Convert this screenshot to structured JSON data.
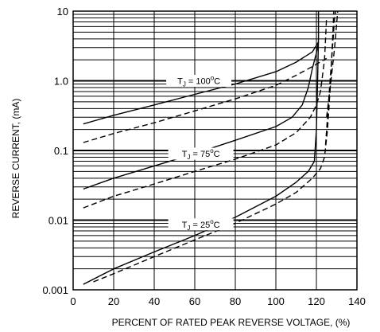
{
  "chart_data": {
    "type": "line",
    "title": "",
    "xlabel": "PERCENT OF RATED PEAK REVERSE VOLTAGE, (%)",
    "ylabel": "REVERSE CURRENT, (mA)",
    "x_scale": "linear",
    "y_scale": "log",
    "xlim": [
      0,
      140
    ],
    "ylim": [
      0.001,
      10
    ],
    "x_ticks": [
      0,
      20,
      40,
      60,
      80,
      100,
      120,
      140
    ],
    "x_tick_labels": [
      "0",
      "20",
      "40",
      "60",
      "80",
      "100",
      "120",
      "140"
    ],
    "y_ticks": [
      0.001,
      0.01,
      0.1,
      1,
      10
    ],
    "y_tick_labels": [
      "0.001",
      "0.01",
      "0.1",
      "1.0",
      "10"
    ],
    "grid": true,
    "series": [
      {
        "style": "solid",
        "points": [
          [
            5,
            0.24
          ],
          [
            20,
            0.32
          ],
          [
            40,
            0.45
          ],
          [
            60,
            0.64
          ],
          [
            80,
            0.9
          ],
          [
            100,
            1.35
          ],
          [
            110,
            1.85
          ],
          [
            118,
            2.6
          ],
          [
            121,
            3.6
          ]
        ]
      },
      {
        "style": "dashed",
        "points": [
          [
            5,
            0.13
          ],
          [
            20,
            0.175
          ],
          [
            40,
            0.25
          ],
          [
            60,
            0.37
          ],
          [
            80,
            0.55
          ],
          [
            100,
            0.86
          ],
          [
            110,
            1.2
          ],
          [
            118,
            1.6
          ],
          [
            121,
            1.8
          ],
          [
            125,
            2.1
          ]
        ]
      },
      {
        "style": "solid",
        "points": [
          [
            5,
            0.028
          ],
          [
            20,
            0.04
          ],
          [
            40,
            0.06
          ],
          [
            60,
            0.09
          ],
          [
            80,
            0.14
          ],
          [
            100,
            0.22
          ],
          [
            108,
            0.3
          ],
          [
            113,
            0.45
          ],
          [
            116,
            0.8
          ],
          [
            118,
            1.5
          ],
          [
            120,
            2.5
          ],
          [
            121,
            3.6
          ]
        ]
      },
      {
        "style": "dashed",
        "points": [
          [
            5,
            0.015
          ],
          [
            20,
            0.022
          ],
          [
            40,
            0.033
          ],
          [
            60,
            0.05
          ],
          [
            80,
            0.075
          ],
          [
            100,
            0.12
          ],
          [
            110,
            0.18
          ],
          [
            117,
            0.3
          ],
          [
            120,
            0.45
          ],
          [
            122,
            0.7
          ],
          [
            124,
            2.0
          ],
          [
            125,
            8.0
          ]
        ]
      },
      {
        "style": "solid",
        "points": [
          [
            5,
            0.0012
          ],
          [
            20,
            0.002
          ],
          [
            40,
            0.0035
          ],
          [
            60,
            0.006
          ],
          [
            80,
            0.011
          ],
          [
            100,
            0.022
          ],
          [
            110,
            0.035
          ],
          [
            116,
            0.05
          ],
          [
            119,
            0.07
          ],
          [
            120,
            0.2
          ],
          [
            120.6,
            1.0
          ],
          [
            121,
            4.0
          ],
          [
            121,
            10
          ]
        ]
      },
      {
        "style": "dashed",
        "points": [
          [
            10,
            0.0013
          ],
          [
            20,
            0.0017
          ],
          [
            40,
            0.003
          ],
          [
            60,
            0.0052
          ],
          [
            80,
            0.009
          ],
          [
            100,
            0.017
          ],
          [
            110,
            0.025
          ],
          [
            118,
            0.04
          ],
          [
            122,
            0.055
          ],
          [
            124,
            0.08
          ],
          [
            125.5,
            0.2
          ],
          [
            127,
            1.0
          ],
          [
            128,
            4.0
          ],
          [
            128.6,
            10
          ]
        ]
      },
      {
        "style": "dashed",
        "points": [
          [
            125,
            0.3
          ],
          [
            127,
            0.9
          ],
          [
            129,
            3.0
          ],
          [
            130.5,
            10
          ]
        ]
      },
      {
        "style": "dashed",
        "points": [
          [
            124.5,
            0.12
          ],
          [
            126,
            0.5
          ],
          [
            127.5,
            2.0
          ],
          [
            129,
            8.0
          ],
          [
            129.5,
            10
          ]
        ]
      }
    ],
    "annotations": [
      {
        "text": "T",
        "sub": "J",
        "rest": " = 100",
        "sup": "o",
        "end": "C",
        "x": 62,
        "y": 1.0
      },
      {
        "text": "T",
        "sub": "J",
        "rest": " = 75",
        "sup": "o",
        "end": "C",
        "x": 63,
        "y": 0.09
      },
      {
        "text": "T",
        "sub": "J",
        "rest": " = 25",
        "sup": "o",
        "end": "C",
        "x": 63,
        "y": 0.0087
      }
    ]
  }
}
